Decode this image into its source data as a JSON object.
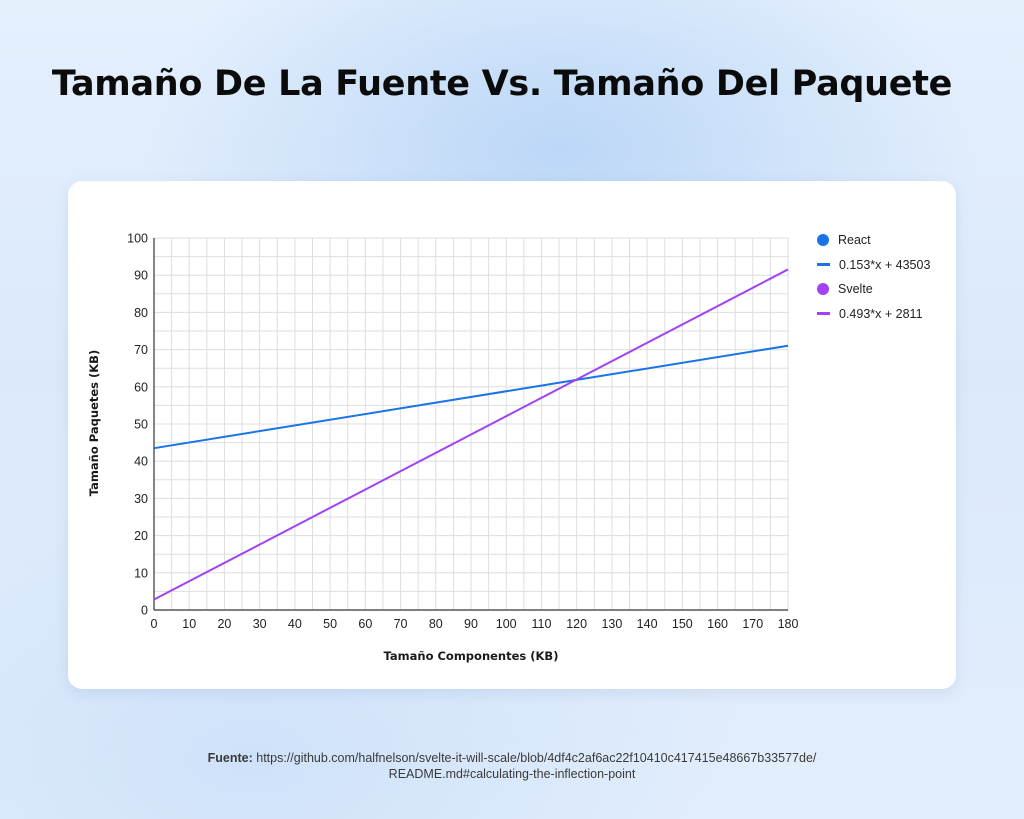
{
  "title": "Tamaño De La Fuente Vs. Tamaño Del Paquete",
  "colors": {
    "react": "#1a73e8",
    "svelte": "#a142f4",
    "grid": "#dedede",
    "axis": "#333333"
  },
  "chart_data": {
    "type": "line",
    "title": "Tamaño De La Fuente Vs. Tamaño Del Paquete",
    "xlabel": "Tamaño Componentes (KB)",
    "ylabel": "Tamaño Paquetes (KB)",
    "xlim": [
      0,
      180
    ],
    "ylim": [
      0,
      100
    ],
    "x_ticks": [
      0,
      10,
      20,
      30,
      40,
      50,
      60,
      70,
      80,
      90,
      100,
      110,
      120,
      130,
      140,
      150,
      160,
      170,
      180
    ],
    "y_ticks": [
      0,
      10,
      20,
      30,
      40,
      50,
      60,
      70,
      80,
      90,
      100
    ],
    "grid": true,
    "legend_position": "right",
    "legend": [
      {
        "label": "React",
        "kind": "marker",
        "series": "react"
      },
      {
        "label": "0.153*x + 43503",
        "kind": "line",
        "series": "react"
      },
      {
        "label": "Svelte",
        "kind": "marker",
        "series": "svelte"
      },
      {
        "label": "0.493*x + 2811",
        "kind": "line",
        "series": "svelte"
      }
    ],
    "series": [
      {
        "name": "React",
        "key": "react",
        "trendline": "0.153*x + 43503",
        "x": [
          0,
          180
        ],
        "y": [
          43.5,
          71.04
        ]
      },
      {
        "name": "Svelte",
        "key": "svelte",
        "trendline": "0.493*x + 2811",
        "x": [
          0,
          180
        ],
        "y": [
          2.81,
          91.55
        ]
      }
    ]
  },
  "source": {
    "label": "Fuente:",
    "line1": "https://github.com/halfnelson/svelte-it-will-scale/blob/4df4c2af6ac22f10410c417415e48667b33577de/",
    "line2": "README.md#calculating-the-inflection-point"
  }
}
